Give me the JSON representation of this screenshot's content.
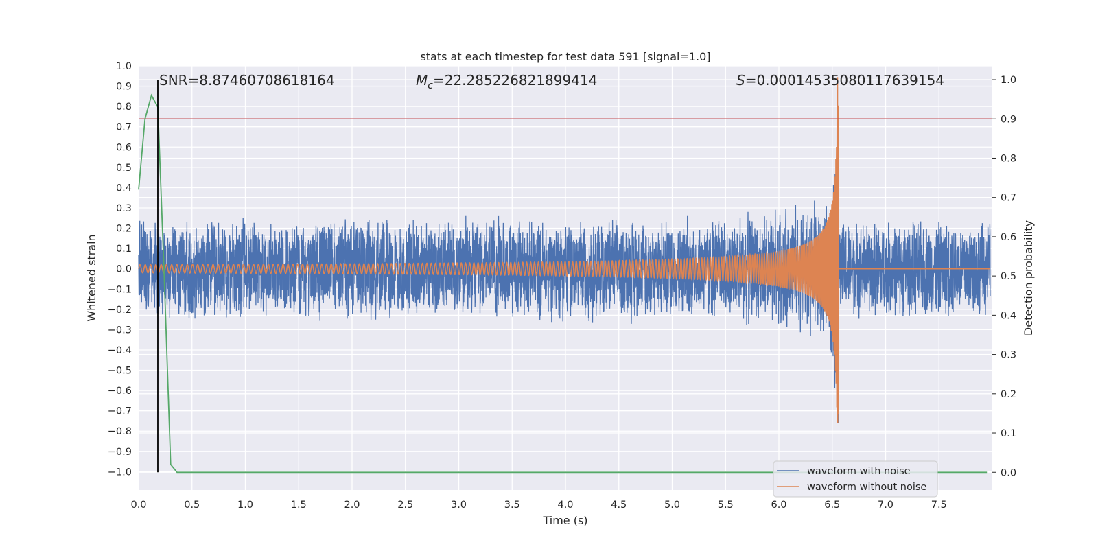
{
  "chart_data": {
    "type": "line",
    "title": "stats at each timestep for test data 591 [signal=1.0]",
    "xlabel": "Time (s)",
    "ylabel": "Whitened strain",
    "ylabel_right": "Detection probability",
    "xlim": [
      0.0,
      8.0
    ],
    "ylim": [
      -1.09,
      1.0
    ],
    "ylim_right": [
      -0.045,
      1.035
    ],
    "xticks": [
      "0.0",
      "0.5",
      "1.0",
      "1.5",
      "2.0",
      "2.5",
      "3.0",
      "3.5",
      "4.0",
      "4.5",
      "5.0",
      "5.5",
      "6.0",
      "6.5",
      "7.0",
      "7.5"
    ],
    "yticks": [
      "1.0",
      "0.9",
      "0.8",
      "0.7",
      "0.6",
      "0.5",
      "0.4",
      "0.3",
      "0.2",
      "0.1",
      "0.0",
      "−0.1",
      "−0.2",
      "−0.3",
      "−0.4",
      "−0.5",
      "−0.6",
      "−0.7",
      "−0.8",
      "−0.9",
      "−1.0"
    ],
    "yticks_right": [
      "1.0",
      "0.9",
      "0.8",
      "0.7",
      "0.6",
      "0.5",
      "0.4",
      "0.3",
      "0.2",
      "0.1",
      "0.0"
    ],
    "grid": true,
    "legend_position": "bottom-right",
    "annotations": {
      "snr": "SNR=8.87460708618164",
      "mc_symbol": "M",
      "mc_sub": "c",
      "mc_value": "=22.285226821899414",
      "s_symbol": "S",
      "s_value": "=0.00014535080117639154"
    },
    "series": [
      {
        "name": "waveform with noise",
        "color": "#4c72b0",
        "noise_amplitude": 0.25,
        "merger_time": 6.56
      },
      {
        "name": "waveform without noise",
        "color": "#dd8452",
        "start_amplitude": 0.02,
        "peak_amplitude": 0.95,
        "merger_time": 6.56,
        "start_frequency": 20
      },
      {
        "name": "detection probability",
        "axis": "right",
        "color": "#55a868",
        "x": [
          0.0,
          0.06,
          0.12,
          0.18,
          0.24,
          0.3,
          0.36,
          0.42,
          7.95
        ],
        "y": [
          0.72,
          0.9,
          0.96,
          0.93,
          0.5,
          0.02,
          0.0,
          0.0,
          0.0
        ]
      }
    ],
    "threshold_line": {
      "axis": "right",
      "value": 0.9,
      "color": "#c44e52"
    },
    "marker_line": {
      "x": 0.18,
      "color": "#000000"
    }
  }
}
